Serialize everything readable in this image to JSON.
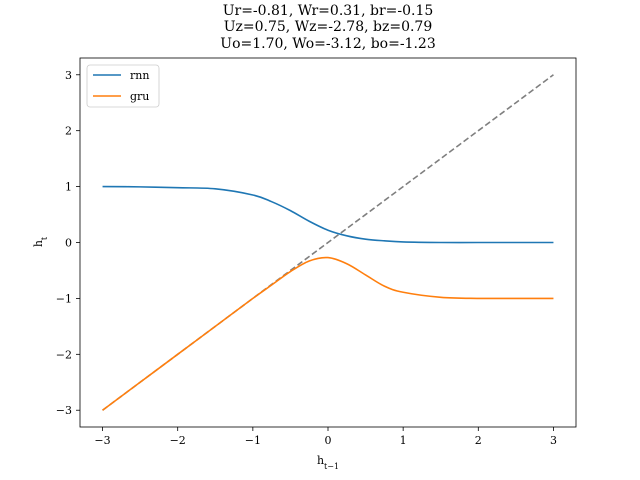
{
  "chart_data": {
    "type": "line",
    "title_lines": [
      "Ur=-0.81, Wr=0.31, br=-0.15",
      "Uz=0.75, Wz=-2.78, bz=0.79",
      "Uo=1.70, Wo=-3.12, bo=-1.23"
    ],
    "xlabel": "h_{t-1}",
    "ylabel": "h_t",
    "xlim": [
      -3.3,
      3.3
    ],
    "ylim": [
      -3.3,
      3.3
    ],
    "xticks": [
      -3,
      -2,
      -1,
      0,
      1,
      2,
      3
    ],
    "yticks": [
      -3,
      -2,
      -1,
      0,
      1,
      2,
      3
    ],
    "tick_labels_x": [
      "−3",
      "−2",
      "−1",
      "0",
      "1",
      "2",
      "3"
    ],
    "tick_labels_y": [
      "−3",
      "−2",
      "−1",
      "0",
      "1",
      "2",
      "3"
    ],
    "legend_position": "top-left",
    "x": [
      -3.0,
      -2.5,
      -2.0,
      -1.5,
      -1.0,
      -0.75,
      -0.5,
      -0.25,
      0.0,
      0.25,
      0.5,
      0.75,
      1.0,
      1.5,
      2.0,
      2.5,
      3.0
    ],
    "series": [
      {
        "name": "rnn",
        "color": "#1f77b4",
        "style": "solid",
        "values": [
          1.0,
          0.995,
          0.98,
          0.96,
          0.85,
          0.73,
          0.57,
          0.38,
          0.22,
          0.12,
          0.06,
          0.03,
          0.01,
          0.0,
          0.0,
          0.0,
          0.0
        ]
      },
      {
        "name": "gru",
        "color": "#ff7f0e",
        "style": "solid",
        "values": [
          -3.0,
          -2.5,
          -2.0,
          -1.5,
          -1.0,
          -0.76,
          -0.52,
          -0.33,
          -0.27,
          -0.38,
          -0.58,
          -0.78,
          -0.89,
          -0.98,
          -1.0,
          -1.0,
          -1.0
        ]
      },
      {
        "name": "",
        "color": "#7f7f7f",
        "style": "dashed",
        "values": [
          -3.0,
          -2.5,
          -2.0,
          -1.5,
          -1.0,
          -0.75,
          -0.5,
          -0.25,
          0.0,
          0.25,
          0.5,
          0.75,
          1.0,
          1.5,
          2.0,
          2.5,
          3.0
        ]
      }
    ]
  }
}
